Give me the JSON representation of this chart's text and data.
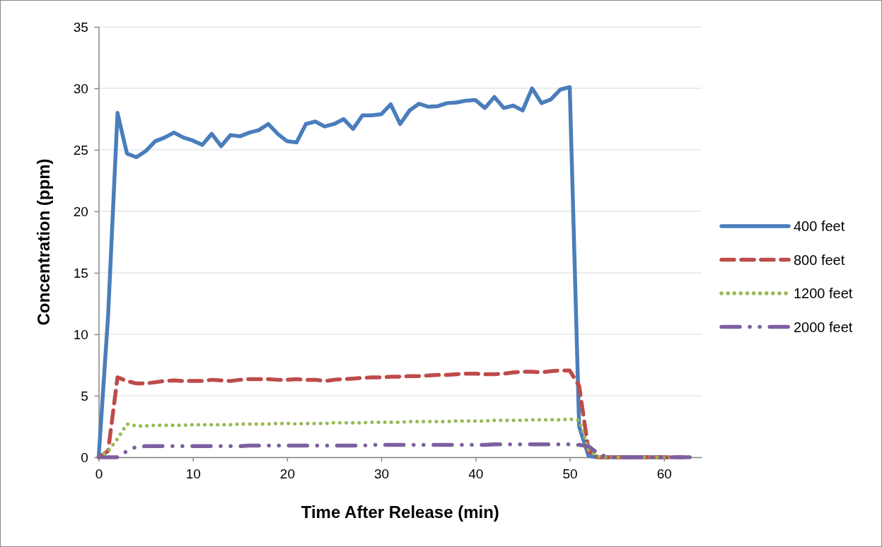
{
  "chart_data": {
    "type": "line",
    "xlabel": "Time After Release (min)",
    "ylabel": "Concentration (ppm)",
    "legend": "right",
    "grid": "y",
    "marker": "none",
    "x": [
      0,
      1,
      2,
      3,
      4,
      5,
      6,
      7,
      8,
      9,
      10,
      11,
      12,
      13,
      14,
      15,
      16,
      17,
      18,
      19,
      20,
      21,
      22,
      23,
      24,
      25,
      26,
      27,
      28,
      29,
      30,
      31,
      32,
      33,
      34,
      35,
      36,
      37,
      38,
      39,
      40,
      41,
      42,
      43,
      44,
      45,
      46,
      47,
      48,
      49,
      50,
      51,
      52,
      53,
      54,
      55,
      56,
      57,
      58,
      59,
      60,
      61,
      62,
      63
    ],
    "xlim": [
      0,
      64
    ],
    "xticks": [
      0,
      10,
      20,
      30,
      40,
      50,
      60
    ],
    "ylim": [
      0,
      35
    ],
    "yticks": [
      0,
      5,
      10,
      15,
      20,
      25,
      30,
      35
    ],
    "series": [
      {
        "name": "400 feet",
        "color": "#4a7ebb",
        "line_style": "solid",
        "values": [
          0,
          11.5,
          28.0,
          24.7,
          24.4,
          24.9,
          25.7,
          26.0,
          26.4,
          26.0,
          25.75,
          25.4,
          26.3,
          25.3,
          26.2,
          26.1,
          26.4,
          26.6,
          27.1,
          26.3,
          25.7,
          25.6,
          27.1,
          27.3,
          26.9,
          27.1,
          27.5,
          26.7,
          27.8,
          27.8,
          27.9,
          28.7,
          27.1,
          28.2,
          28.75,
          28.5,
          28.55,
          28.8,
          28.85,
          29.0,
          29.05,
          28.4,
          29.3,
          28.4,
          28.6,
          28.2,
          30.0,
          28.8,
          29.1,
          29.9,
          30.1,
          2.5,
          0.1,
          0,
          0,
          0,
          0,
          0,
          0,
          0,
          0,
          null,
          null,
          null
        ]
      },
      {
        "name": "800 feet",
        "color": "#be4b48",
        "line_style": "dashed",
        "values": [
          0,
          0.5,
          6.5,
          6.2,
          6.0,
          6.0,
          6.1,
          6.2,
          6.25,
          6.2,
          6.2,
          6.2,
          6.3,
          6.25,
          6.2,
          6.3,
          6.35,
          6.35,
          6.35,
          6.3,
          6.3,
          6.35,
          6.3,
          6.3,
          6.2,
          6.3,
          6.35,
          6.4,
          6.45,
          6.5,
          6.5,
          6.55,
          6.55,
          6.6,
          6.6,
          6.65,
          6.7,
          6.7,
          6.75,
          6.8,
          6.8,
          6.75,
          6.75,
          6.8,
          6.9,
          6.95,
          6.95,
          6.9,
          7.0,
          7.05,
          7.05,
          5.8,
          0.5,
          0,
          0,
          0,
          0,
          0,
          0,
          0,
          0,
          0,
          0,
          null
        ]
      },
      {
        "name": "1200 feet",
        "color": "#98b954",
        "line_style": "dotted",
        "values": [
          0,
          0.5,
          1.5,
          2.7,
          2.55,
          2.55,
          2.6,
          2.6,
          2.6,
          2.6,
          2.65,
          2.65,
          2.65,
          2.65,
          2.65,
          2.7,
          2.7,
          2.7,
          2.7,
          2.75,
          2.75,
          2.7,
          2.75,
          2.75,
          2.75,
          2.8,
          2.8,
          2.8,
          2.8,
          2.85,
          2.85,
          2.85,
          2.85,
          2.9,
          2.9,
          2.9,
          2.9,
          2.9,
          2.95,
          2.95,
          2.95,
          2.95,
          3.0,
          3.0,
          3.0,
          3.0,
          3.05,
          3.05,
          3.05,
          3.05,
          3.1,
          3.0,
          0.6,
          0.05,
          0,
          0,
          0,
          0,
          0,
          0,
          0,
          0,
          0,
          null
        ]
      },
      {
        "name": "2000 feet",
        "color": "#7d60a0",
        "line_style": "dashdot",
        "values": [
          0,
          0,
          0,
          0.5,
          0.85,
          0.9,
          0.9,
          0.9,
          0.9,
          0.9,
          0.9,
          0.9,
          0.9,
          0.9,
          0.9,
          0.9,
          0.95,
          0.95,
          0.95,
          0.95,
          0.95,
          0.95,
          0.95,
          0.95,
          0.95,
          0.95,
          0.95,
          0.95,
          0.95,
          1.0,
          1.0,
          1.0,
          1.0,
          1.0,
          1.0,
          1.0,
          1.0,
          1.0,
          1.0,
          1.0,
          1.0,
          1.0,
          1.05,
          1.05,
          1.05,
          1.05,
          1.05,
          1.05,
          1.05,
          1.05,
          1.05,
          1.0,
          0.9,
          0.3,
          0,
          0,
          0,
          0,
          0,
          0,
          0,
          0,
          0,
          0
        ]
      }
    ]
  }
}
